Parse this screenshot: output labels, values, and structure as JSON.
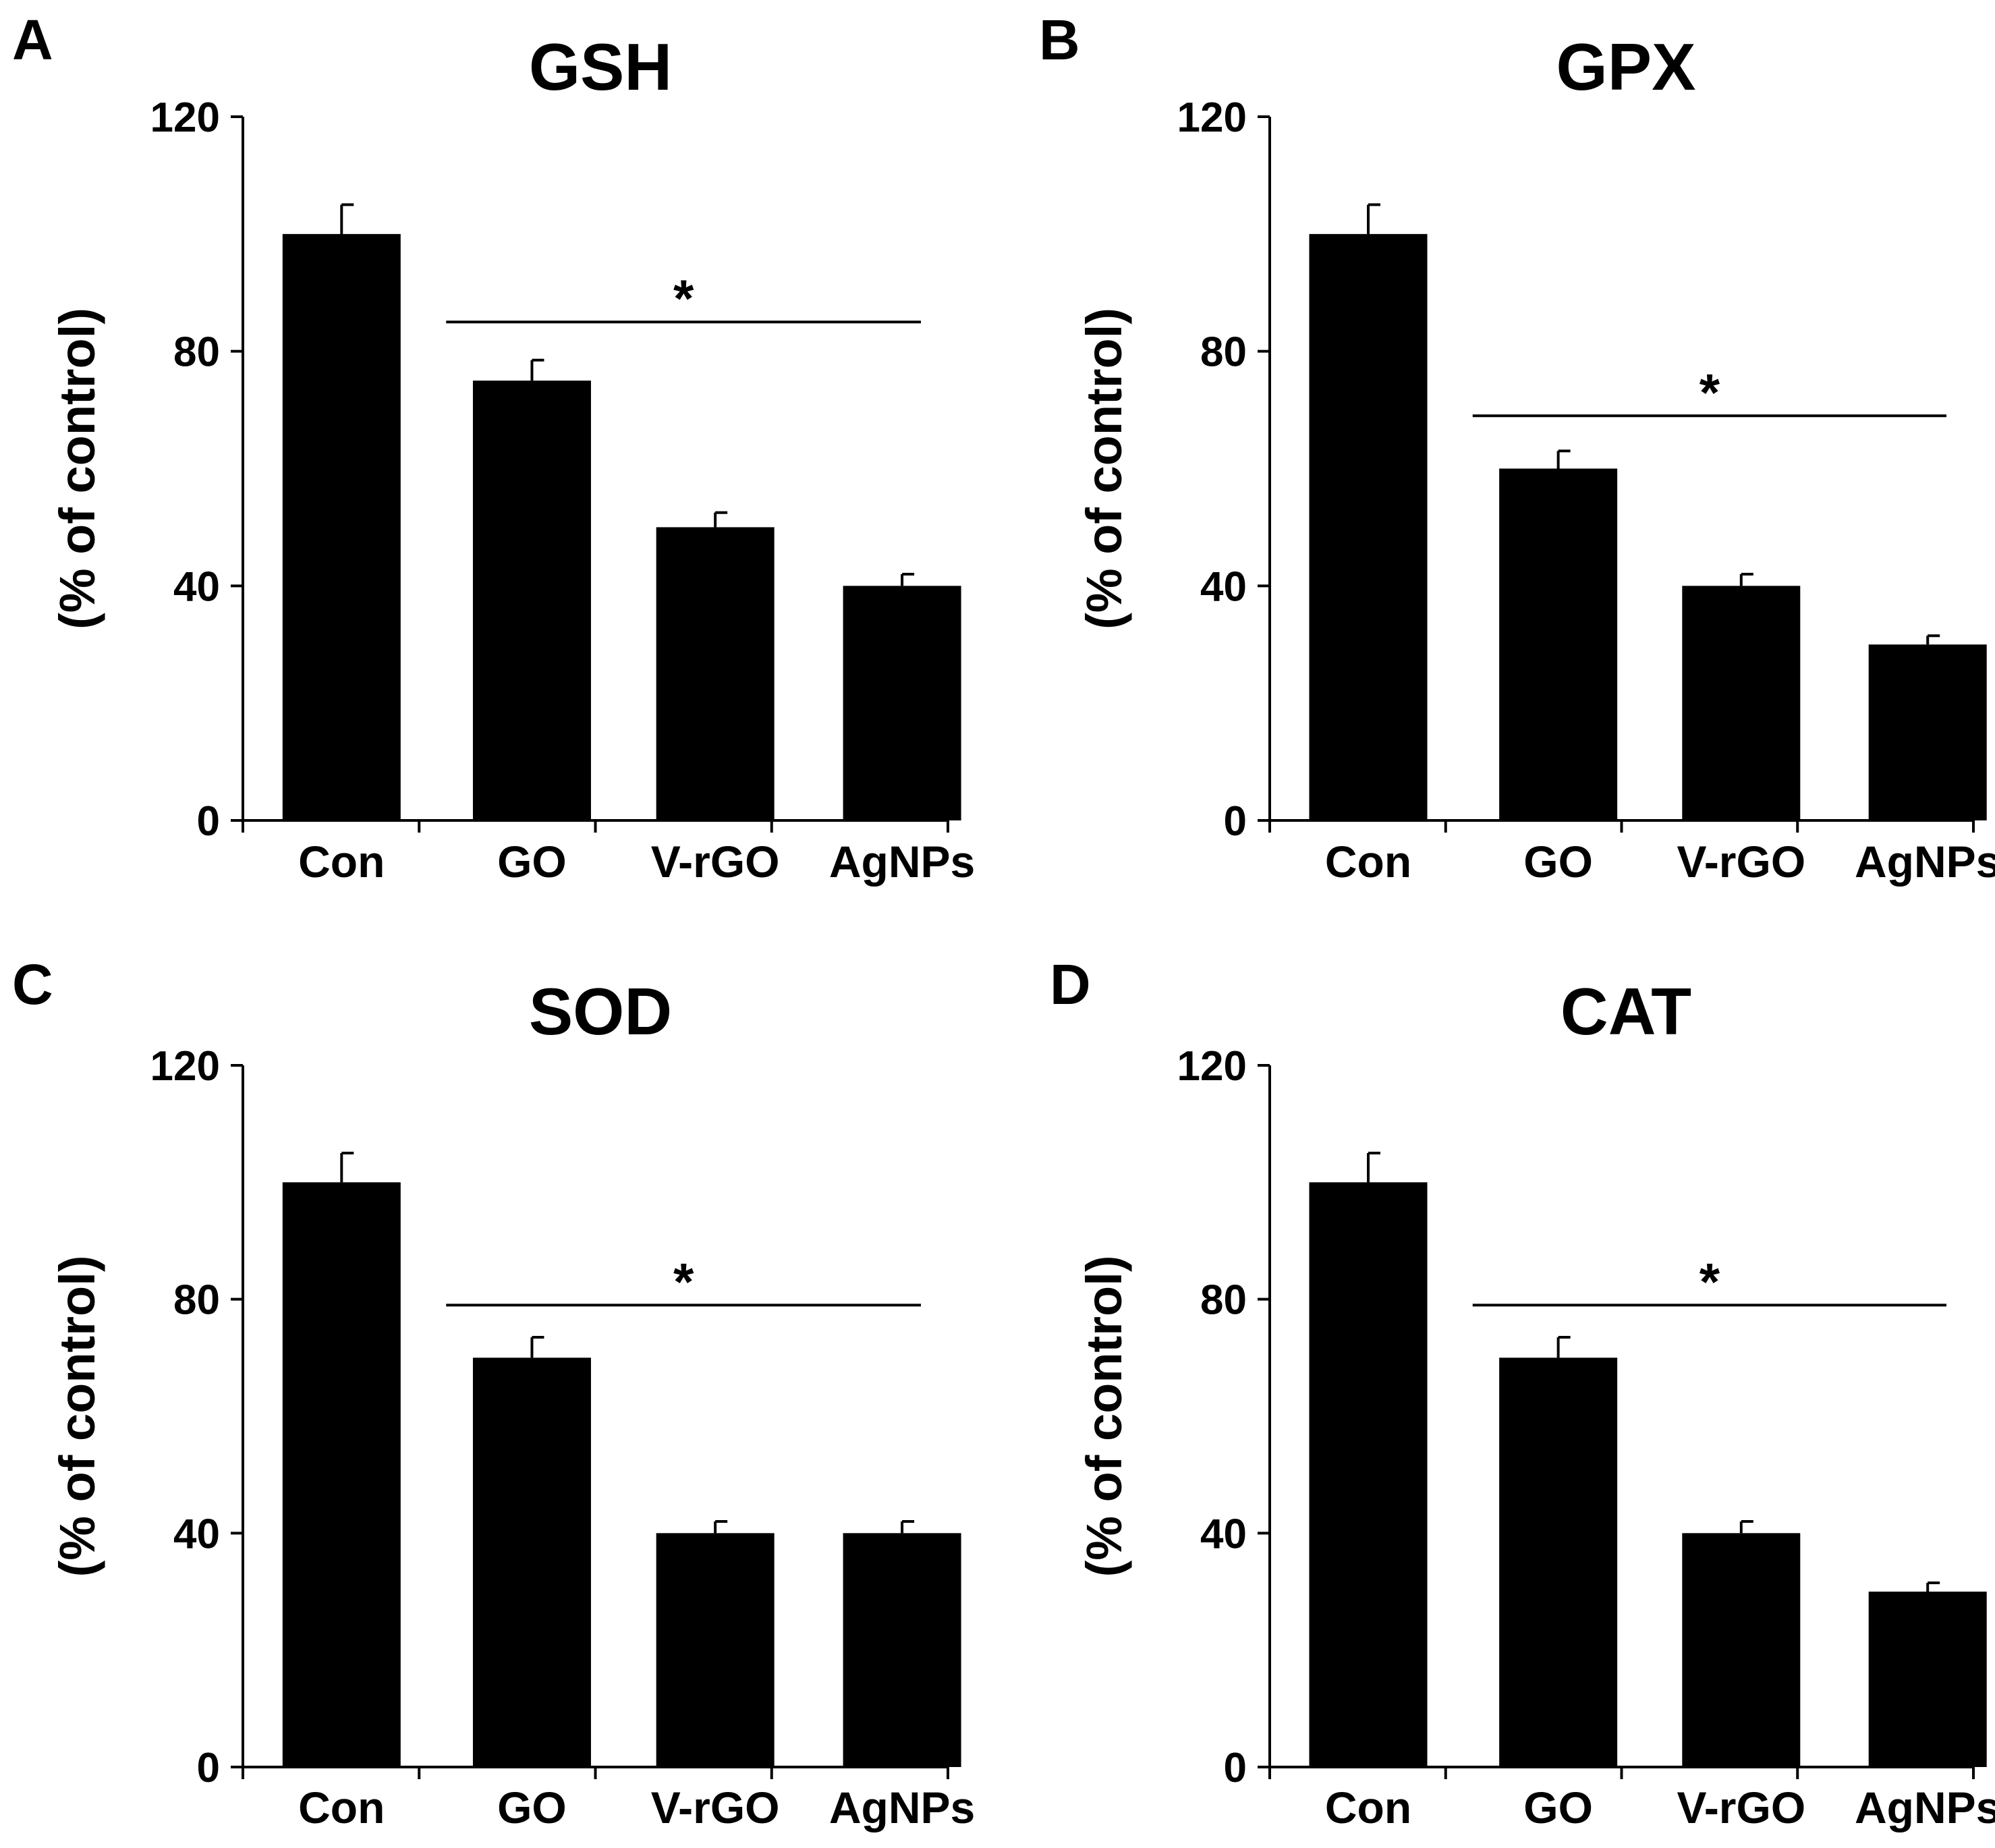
{
  "chart_data": [
    {
      "panel": "A",
      "title": "GSH",
      "type": "bar",
      "categories": [
        "Con",
        "GO",
        "V-rGO",
        "AgNPs"
      ],
      "values": [
        100,
        75,
        50,
        40
      ],
      "errors": [
        5,
        3.5,
        2.5,
        2
      ],
      "ylabel": "(% of control)",
      "xlabel": "",
      "ylim": [
        0,
        120
      ],
      "yticks": [
        "0",
        "40",
        "80",
        "120"
      ],
      "significance": {
        "from": 1,
        "to": 3,
        "label": "*",
        "y": 85
      }
    },
    {
      "panel": "B",
      "title": "GPX",
      "type": "bar",
      "categories": [
        "Con",
        "GO",
        "V-rGO",
        "AgNPs"
      ],
      "values": [
        100,
        60,
        40,
        30
      ],
      "errors": [
        5,
        3,
        2,
        1.5
      ],
      "ylabel": "(% of control)",
      "xlabel": "",
      "ylim": [
        0,
        120
      ],
      "yticks": [
        "0",
        "40",
        "80",
        "120"
      ],
      "significance": {
        "from": 1,
        "to": 3,
        "label": "*",
        "y": 69
      }
    },
    {
      "panel": "C",
      "title": "SOD",
      "type": "bar",
      "categories": [
        "Con",
        "GO",
        "V-rGO",
        "AgNPs"
      ],
      "values": [
        100,
        70,
        40,
        40
      ],
      "errors": [
        5,
        3.5,
        2,
        2
      ],
      "ylabel": "(% of control)",
      "xlabel": "",
      "ylim": [
        0,
        120
      ],
      "yticks": [
        "0",
        "40",
        "80",
        "120"
      ],
      "significance": {
        "from": 1,
        "to": 3,
        "label": "*",
        "y": 79
      }
    },
    {
      "panel": "D",
      "title": "CAT",
      "type": "bar",
      "categories": [
        "Con",
        "GO",
        "V-rGO",
        "AgNPs"
      ],
      "values": [
        100,
        70,
        40,
        30
      ],
      "errors": [
        5,
        3.5,
        2,
        1.5
      ],
      "ylabel": "(% of control)",
      "xlabel": "",
      "ylim": [
        0,
        120
      ],
      "yticks": [
        "0",
        "40",
        "80",
        "120"
      ],
      "significance": {
        "from": 1,
        "to": 3,
        "label": "*",
        "y": 79
      }
    }
  ],
  "colors": {
    "bar": "#000000",
    "axis": "#000000",
    "background": "#ffffff"
  }
}
